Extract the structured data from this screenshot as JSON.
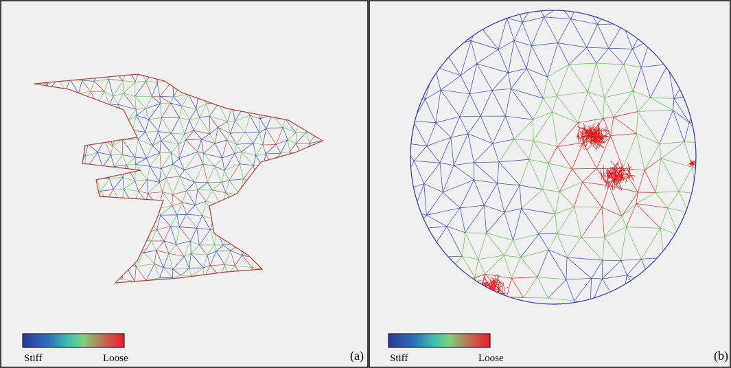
{
  "panels": [
    {
      "legend": {
        "low": "Stiff",
        "high": "Loose"
      },
      "label": "(a)"
    },
    {
      "legend": {
        "low": "Stiff",
        "high": "Loose"
      },
      "label": "(b)"
    }
  ]
}
